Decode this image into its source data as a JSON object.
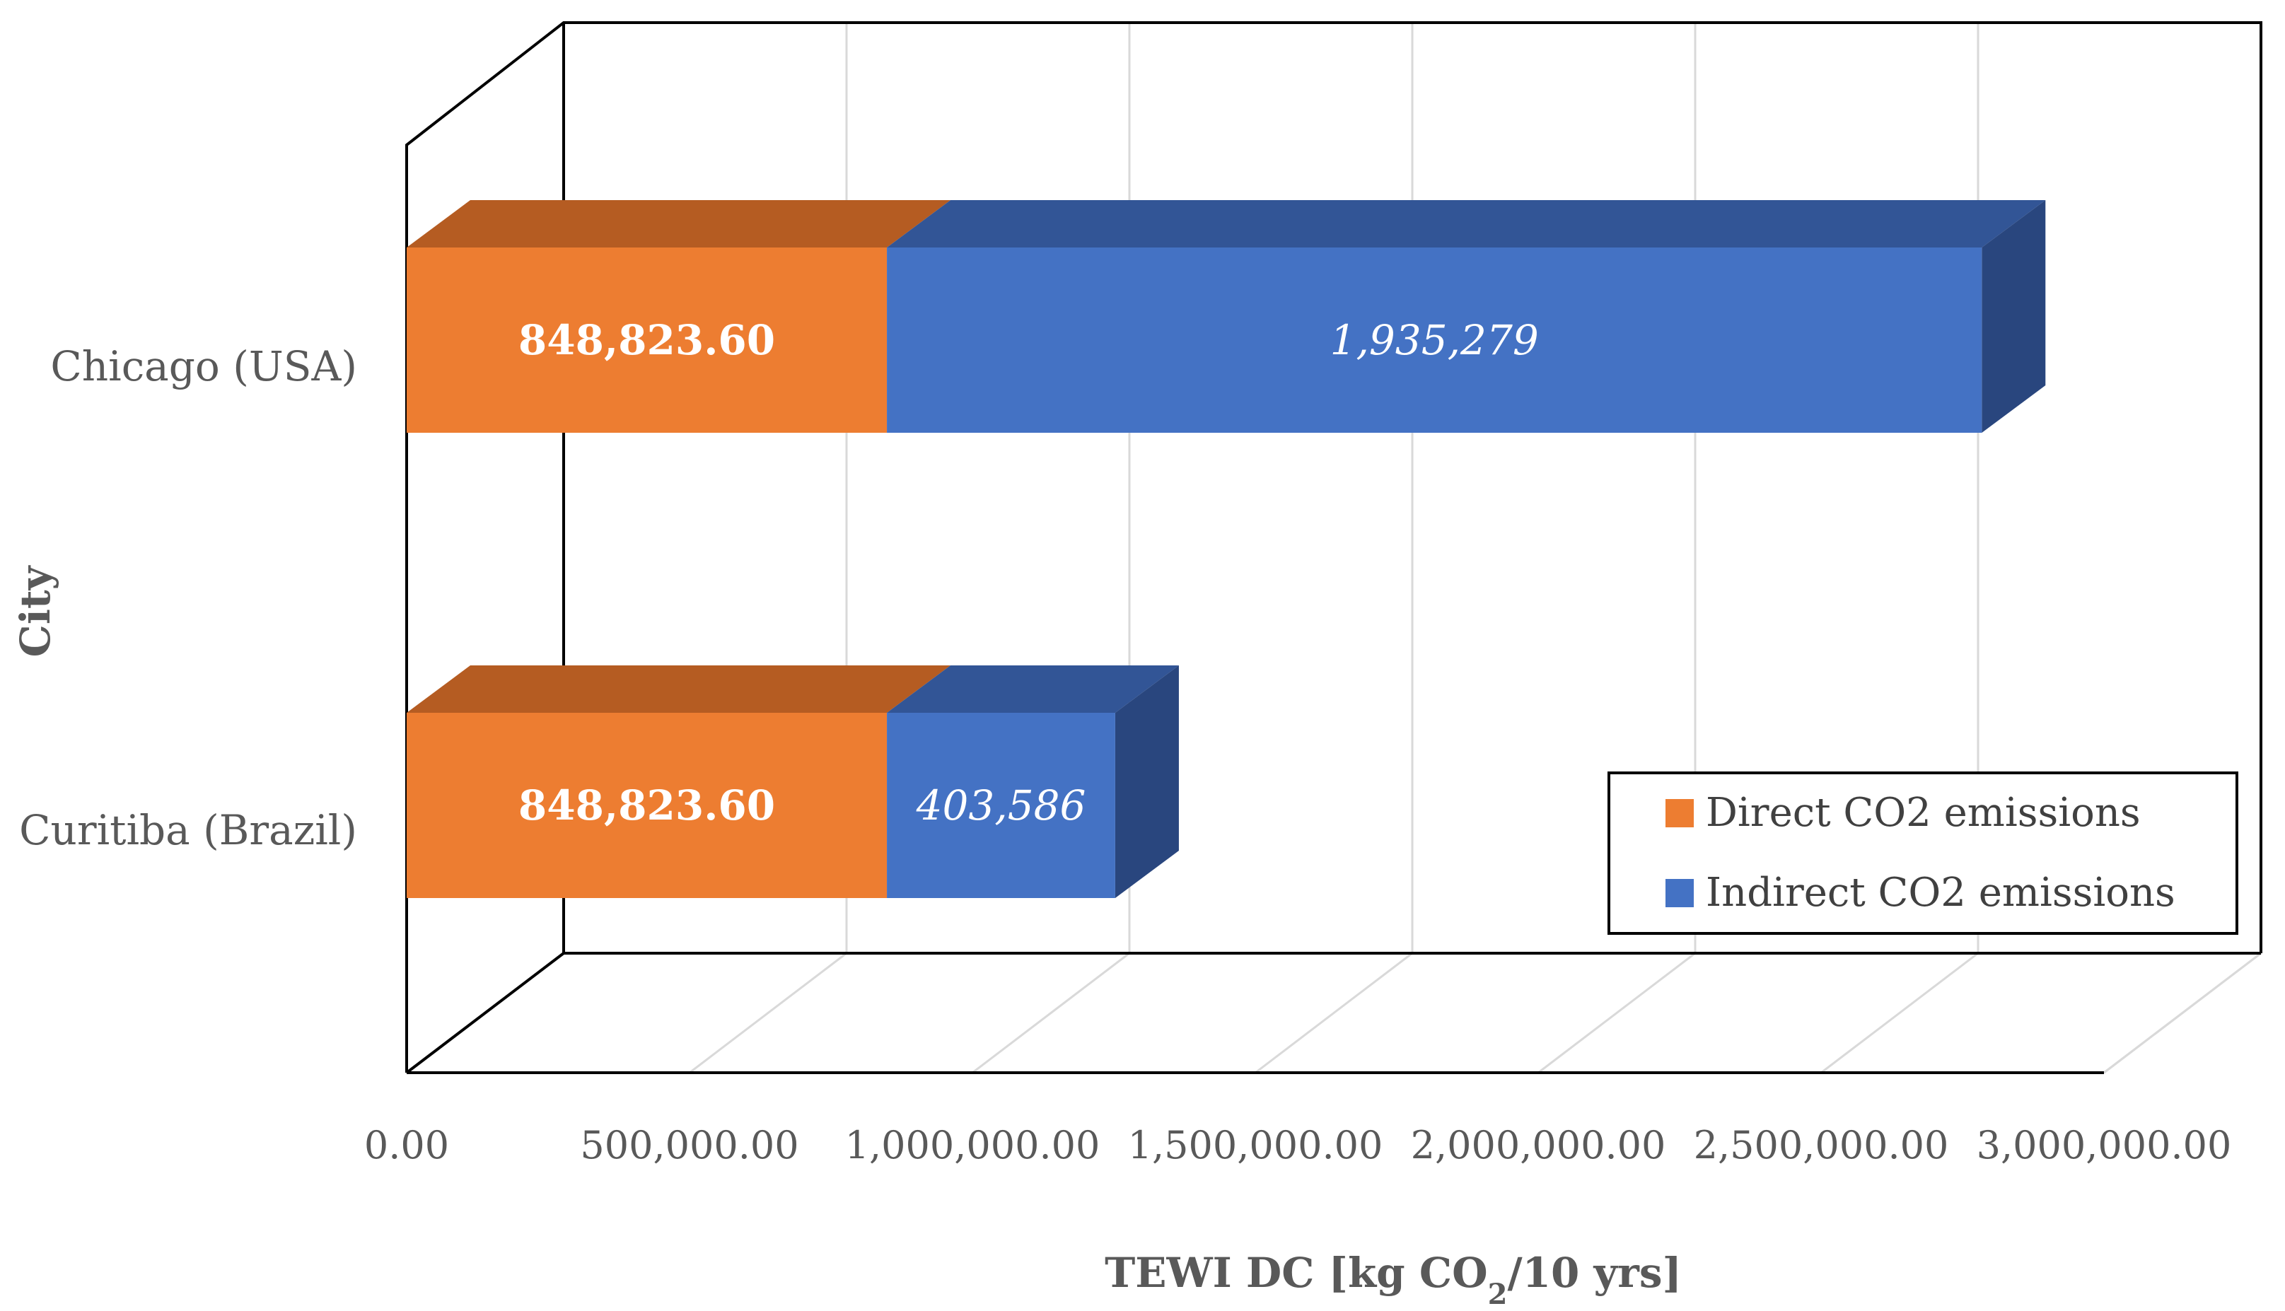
{
  "chart_data": {
    "type": "bar",
    "orientation": "horizontal",
    "stacked": true,
    "style": "3d",
    "title": "",
    "categories": [
      "Chicago (USA)",
      "Curitiba (Brazil)"
    ],
    "series": [
      {
        "name": "Direct CO2 emissions",
        "values": [
          848823.6,
          848823.6
        ],
        "labels": [
          "848,823.60",
          "848,823.60"
        ],
        "color": "#ED7D31",
        "top_color": "#B55C22",
        "label_style": "bold"
      },
      {
        "name": "Indirect CO2 emissions",
        "values": [
          1935279,
          403586
        ],
        "labels": [
          "1,935,279",
          "403,586"
        ],
        "color": "#4472C4",
        "top_color": "#325596",
        "side_color": "#29467E",
        "label_style": "italic"
      }
    ],
    "xlim": [
      0,
      3000000
    ],
    "x_ticks": [
      0,
      500000,
      1000000,
      1500000,
      2000000,
      2500000,
      3000000
    ],
    "x_tick_labels": [
      "0.00",
      "500,000.00",
      "1,000,000.00",
      "1,500,000.00",
      "2,000,000.00",
      "2,500,000.00",
      "3,000,000.00"
    ],
    "xlabel_main": "TEWI DC [kg CO",
    "xlabel_sub": "2",
    "xlabel_tail": "/10 yrs]",
    "ylabel": "City",
    "grid": true,
    "legend_position": "bottom-right"
  }
}
